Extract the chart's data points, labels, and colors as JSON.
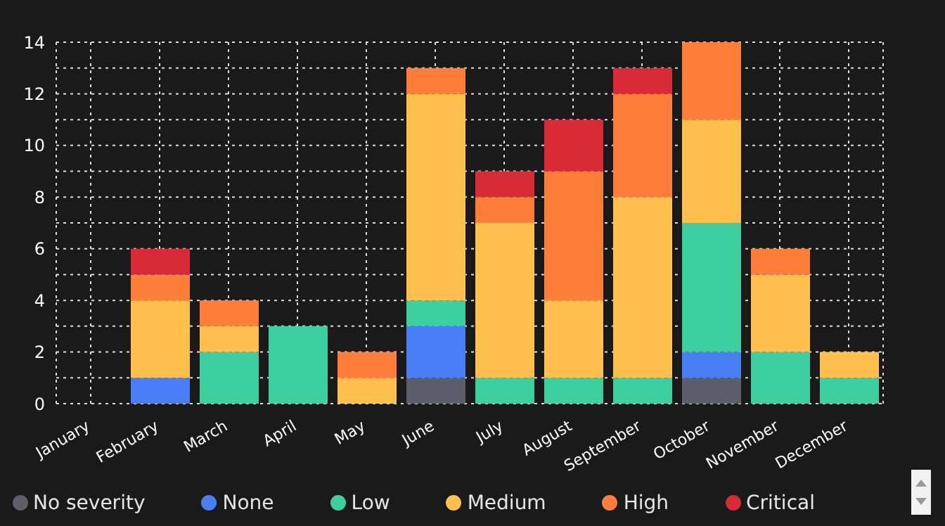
{
  "chart_data": {
    "type": "bar",
    "stacked": true,
    "grid": true,
    "legend": "bottom",
    "categories": [
      "January",
      "February",
      "March",
      "April",
      "May",
      "June",
      "July",
      "August",
      "September",
      "October",
      "November",
      "December"
    ],
    "ylim": [
      0,
      14
    ],
    "yticks": [
      0,
      {
        "value": 1,
        "label": null
      },
      2,
      {
        "value": 3,
        "label": null
      },
      4,
      {
        "value": 5,
        "label": null
      },
      6,
      {
        "value": 7,
        "label": null
      },
      8,
      {
        "value": 9,
        "label": null
      },
      10,
      {
        "value": 11,
        "label": null
      },
      12,
      {
        "value": 13,
        "label": null
      },
      14
    ],
    "series": [
      {
        "name": "No severity",
        "color": "#5c5f6b",
        "values": [
          0,
          0,
          0,
          0,
          0,
          1,
          0,
          0,
          0,
          1,
          0,
          0
        ]
      },
      {
        "name": "None",
        "color": "#4a7ef7",
        "values": [
          0,
          1,
          0,
          0,
          0,
          2,
          0,
          0,
          0,
          1,
          0,
          0
        ]
      },
      {
        "name": "Low",
        "color": "#3ecfa0",
        "values": [
          0,
          0,
          2,
          3,
          0,
          1,
          1,
          1,
          1,
          5,
          2,
          1
        ]
      },
      {
        "name": "Medium",
        "color": "#ffc04d",
        "values": [
          0,
          3,
          1,
          0,
          1,
          8,
          6,
          3,
          7,
          4,
          3,
          1
        ]
      },
      {
        "name": "High",
        "color": "#ff7f3a",
        "values": [
          0,
          1,
          1,
          0,
          1,
          1,
          1,
          5,
          4,
          3,
          1,
          0
        ]
      },
      {
        "name": "Critical",
        "color": "#d92b37",
        "values": [
          0,
          1,
          0,
          0,
          0,
          0,
          1,
          2,
          1,
          0,
          0,
          0
        ]
      }
    ]
  }
}
